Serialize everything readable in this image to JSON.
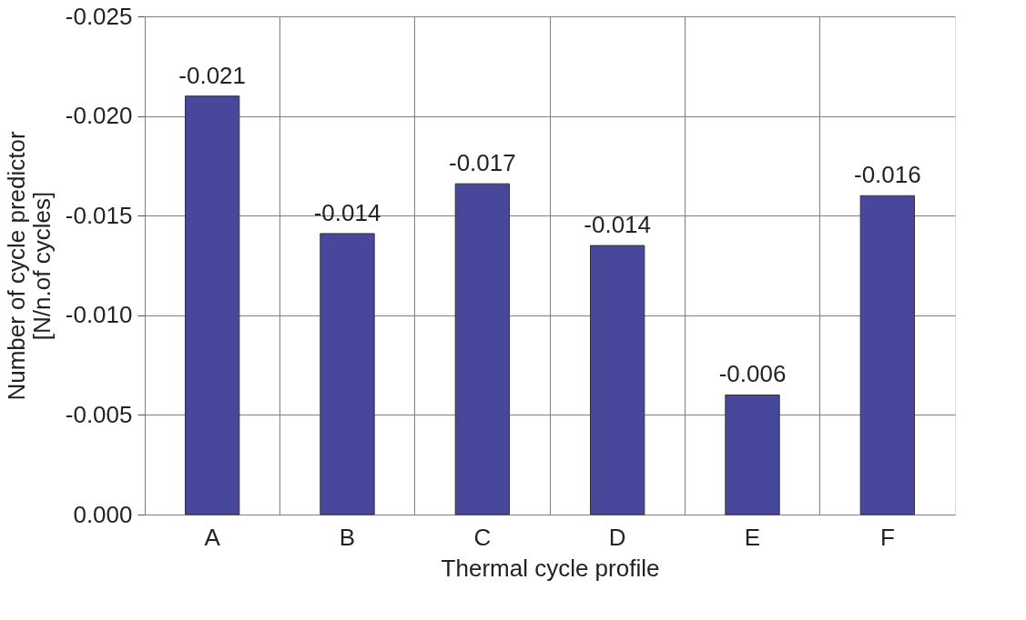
{
  "chart_data": {
    "type": "bar",
    "xlabel": "Thermal cycle profile",
    "ylabel": "Number of cycle predictor\n[N/n.of cycles]",
    "categories": [
      "A",
      "B",
      "C",
      "D",
      "E",
      "F"
    ],
    "values": [
      -0.021,
      -0.0141,
      -0.0166,
      -0.0135,
      -0.006,
      -0.016
    ],
    "value_labels": [
      "-0.021",
      "-0.014",
      "-0.017",
      "-0.014",
      "-0.006",
      "-0.016"
    ],
    "color": "#47479b",
    "ylim": [
      0,
      -0.025
    ],
    "yticks": [
      {
        "value": 0,
        "label": "0.000"
      },
      {
        "value": -0.005,
        "label": "-0.005"
      },
      {
        "value": -0.01,
        "label": "-0.010"
      },
      {
        "value": -0.015,
        "label": "-0.015"
      },
      {
        "value": -0.02,
        "label": "-0.020"
      },
      {
        "value": -0.025,
        "label": "-0.025"
      }
    ],
    "grid": true
  }
}
